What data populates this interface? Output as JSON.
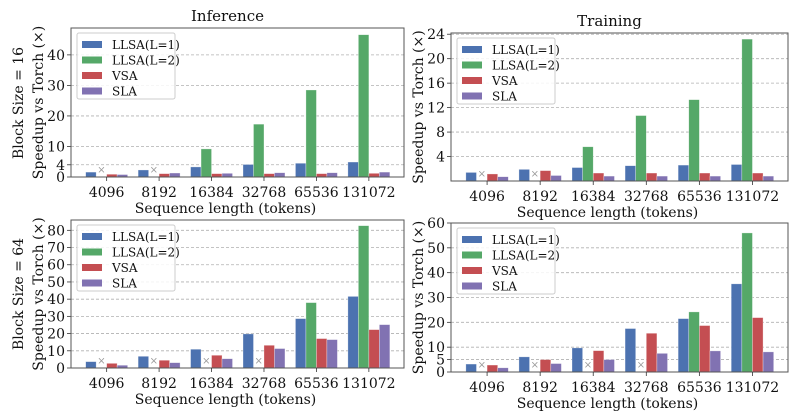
{
  "colors": {
    "LLSA(L=1)": "#4c72b0",
    "LLSA(L=2)": "#55a868",
    "VSA": "#c44e52",
    "SLA": "#8172b2",
    "missing_marker": "#999999"
  },
  "row_labels": [
    "Block Size = 16",
    "Block Size = 64"
  ],
  "chart_data": [
    {
      "type": "bar",
      "title": "Inference",
      "xlabel": "Sequence length (tokens)",
      "ylabel": "Speedup vs Torch (×)",
      "categories": [
        "4096",
        "8192",
        "16384",
        "32768",
        "65536",
        "131072"
      ],
      "yticks": [
        0,
        4,
        10,
        20,
        30,
        40
      ],
      "ylim": [
        0,
        48.8
      ],
      "grid": true,
      "legend": "top-left",
      "missing_marker": "×",
      "series": [
        {
          "name": "LLSA(L=1)",
          "values": [
            1.6,
            2.3,
            3.3,
            4.1,
            4.5,
            4.9
          ]
        },
        {
          "name": "LLSA(L=2)",
          "values": [
            null,
            null,
            9.2,
            17.3,
            28.5,
            46.6
          ]
        },
        {
          "name": "VSA",
          "values": [
            0.9,
            1.1,
            1.1,
            1.1,
            1.1,
            1.2
          ]
        },
        {
          "name": "SLA",
          "values": [
            0.8,
            1.3,
            1.2,
            1.4,
            1.4,
            1.6
          ]
        }
      ]
    },
    {
      "type": "bar",
      "title": "Training",
      "xlabel": "Sequence length (tokens)",
      "ylabel": "Speedup vs Torch (×)",
      "categories": [
        "4096",
        "8192",
        "16384",
        "32768",
        "65536",
        "131072"
      ],
      "yticks": [
        4,
        8,
        12,
        16,
        20,
        24
      ],
      "ylim": [
        0,
        24.2
      ],
      "grid": true,
      "legend": "top-left",
      "missing_marker": "×",
      "series": [
        {
          "name": "LLSA(L=1)",
          "values": [
            1.4,
            1.9,
            2.2,
            2.5,
            2.6,
            2.7
          ]
        },
        {
          "name": "LLSA(L=2)",
          "values": [
            null,
            null,
            5.6,
            10.7,
            13.3,
            23.2
          ]
        },
        {
          "name": "VSA",
          "values": [
            1.15,
            1.7,
            1.3,
            1.3,
            1.3,
            1.3
          ]
        },
        {
          "name": "SLA",
          "values": [
            0.7,
            0.9,
            0.8,
            0.8,
            0.8,
            0.8
          ]
        }
      ]
    },
    {
      "type": "bar",
      "title": "",
      "xlabel": "Sequence length (tokens)",
      "ylabel": "Speedup vs Torch (×)",
      "categories": [
        "4096",
        "8192",
        "16384",
        "32768",
        "65536",
        "131072"
      ],
      "yticks": [
        0,
        10,
        20,
        30,
        40,
        50,
        60,
        70,
        80
      ],
      "ylim": [
        0,
        86
      ],
      "grid": true,
      "legend": "top-left",
      "missing_marker": "×",
      "series": [
        {
          "name": "LLSA(L=1)",
          "values": [
            3.7,
            6.8,
            10.9,
            19.8,
            28.7,
            41.6
          ]
        },
        {
          "name": "LLSA(L=2)",
          "values": [
            null,
            null,
            null,
            null,
            38.0,
            82.7
          ]
        },
        {
          "name": "VSA",
          "values": [
            2.7,
            4.5,
            7.4,
            13.2,
            17.1,
            22.3
          ]
        },
        {
          "name": "SLA",
          "values": [
            1.6,
            3.1,
            5.4,
            11.3,
            16.5,
            25.2
          ]
        }
      ]
    },
    {
      "type": "bar",
      "title": "",
      "xlabel": "Sequence length (tokens)",
      "ylabel": "Speedup vs Torch (×)",
      "categories": [
        "4096",
        "8192",
        "16384",
        "32768",
        "65536",
        "131072"
      ],
      "yticks": [
        0,
        5,
        10,
        20,
        30,
        40,
        50,
        60
      ],
      "ylim": [
        0,
        60
      ],
      "grid": true,
      "legend": "top-left",
      "missing_marker": "×",
      "series": [
        {
          "name": "LLSA(L=1)",
          "values": [
            3.2,
            6.1,
            9.7,
            17.5,
            21.5,
            35.5
          ]
        },
        {
          "name": "LLSA(L=2)",
          "values": [
            null,
            null,
            null,
            null,
            24.2,
            56.0
          ]
        },
        {
          "name": "VSA",
          "values": [
            2.8,
            5.0,
            8.6,
            15.6,
            18.7,
            21.9
          ]
        },
        {
          "name": "SLA",
          "values": [
            1.7,
            3.4,
            5.0,
            7.5,
            8.5,
            8.1
          ]
        }
      ]
    }
  ]
}
